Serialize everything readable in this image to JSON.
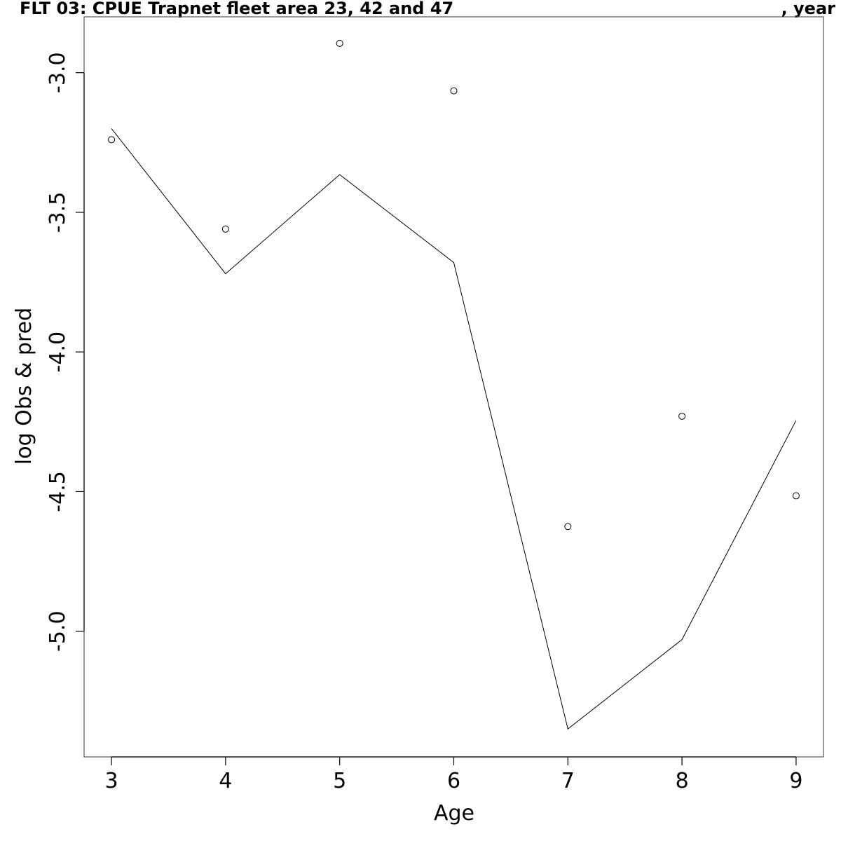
{
  "chart_data": {
    "type": "line",
    "title": "FLT 03: CPUE Trapnet fleet area 23, 42 and 47",
    "title_suffix": ", year",
    "xlabel": "Age",
    "ylabel": "log Obs & pred",
    "x": [
      3,
      4,
      5,
      6,
      7,
      8,
      9
    ],
    "x_ticks": [
      "3",
      "4",
      "5",
      "6",
      "7",
      "8",
      "9"
    ],
    "y_ticks": [
      "-3.0",
      "-3.5",
      "-4.0",
      "-4.5",
      "-5.0"
    ],
    "y_tick_values": [
      -3.0,
      -3.5,
      -4.0,
      -4.5,
      -5.0
    ],
    "xlim": [
      2.76,
      9.24
    ],
    "ylim": [
      -5.45,
      -2.8
    ],
    "series": [
      {
        "style": "points",
        "marker": "open-circle",
        "values": [
          -3.24,
          -3.56,
          -2.895,
          -3.065,
          -4.625,
          -4.23,
          -4.515
        ]
      },
      {
        "style": "line",
        "values": [
          -3.2,
          -3.72,
          -3.365,
          -3.68,
          -5.35,
          -5.03,
          -4.245
        ]
      }
    ],
    "grid": false,
    "legend": "none"
  }
}
